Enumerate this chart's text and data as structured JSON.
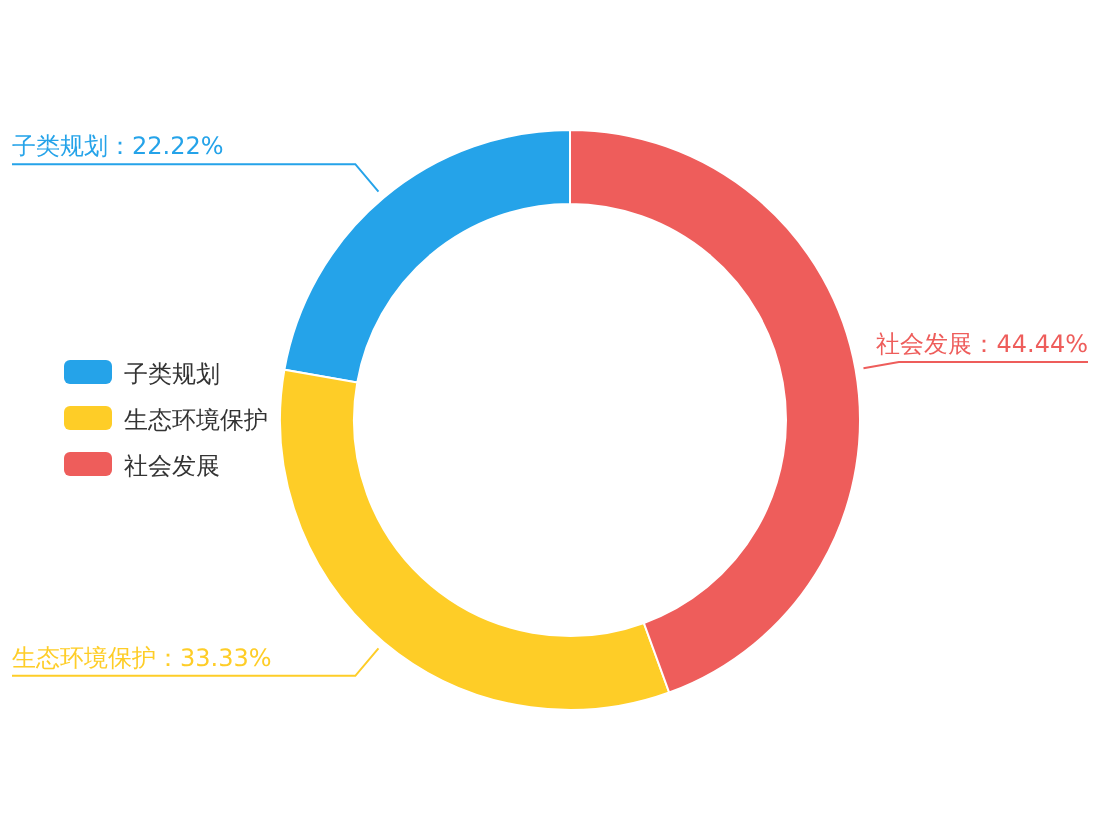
{
  "chart_data": {
    "type": "donut",
    "categories": [
      "子类规划",
      "生态环境保护",
      "社会发展"
    ],
    "values": [
      22.22,
      33.33,
      44.44
    ],
    "colors": [
      "#25a3e9",
      "#fecd27",
      "#ee5d5b"
    ],
    "value_labels": [
      "子类规划：22.22%",
      "生态环境保护：33.33%",
      "社会发展：44.44%"
    ],
    "legend": "left"
  }
}
